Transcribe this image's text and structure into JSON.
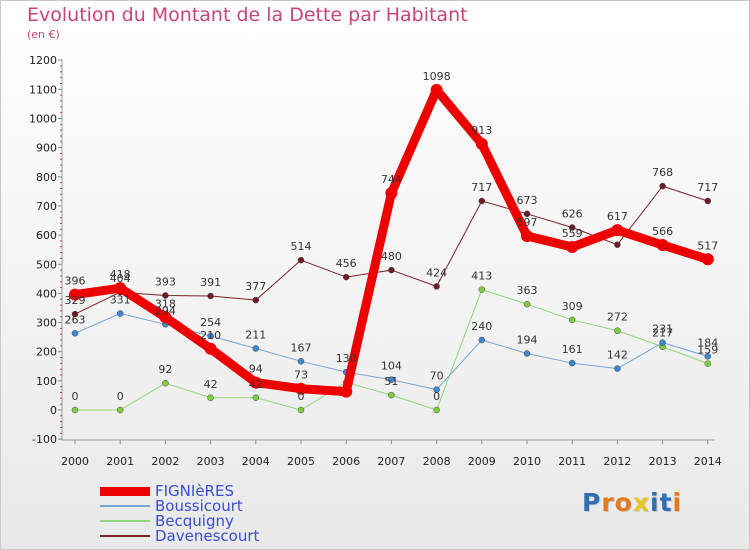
{
  "title": "Evolution du Montant de la Dette par Habitant",
  "unit": "(en €)",
  "logo": {
    "letters": [
      "P",
      "r",
      "o",
      "x",
      "i",
      "t",
      "i"
    ],
    "colors": [
      "#2e6fb6",
      "#e07a1b",
      "#e07a1b",
      "#e8c71a",
      "#2e6fb6",
      "#2e6fb6",
      "#e07a1b"
    ]
  },
  "chart_data": {
    "type": "line",
    "x": [
      "2000",
      "2001",
      "2002",
      "2003",
      "2004",
      "2005",
      "2006",
      "2007",
      "2008",
      "2009",
      "2010",
      "2011",
      "2012",
      "2013",
      "2014"
    ],
    "ylim": [
      -100,
      1200
    ],
    "yticks": [
      -100,
      0,
      100,
      200,
      300,
      400,
      500,
      600,
      700,
      800,
      900,
      1000,
      1100,
      1200
    ],
    "grid": false,
    "legend_position": "bottom-left",
    "series": [
      {
        "name": "Davenescourt",
        "color": "#7b1f2a",
        "marker": "#6e1c26",
        "width": 1,
        "values": [
          329,
          404,
          393,
          391,
          377,
          514,
          456,
          480,
          424,
          717,
          673,
          626,
          567,
          768,
          717
        ],
        "labels": [
          "329",
          "404",
          "393",
          "391",
          "377",
          "514",
          "456",
          "480",
          "424",
          "717",
          "673",
          "626",
          "",
          "768",
          "717"
        ]
      },
      {
        "name": "Becquigny",
        "color": "#92d67a",
        "marker": "#7bcf3c",
        "width": 1,
        "values": [
          0,
          0,
          92,
          42,
          42,
          0,
          95,
          51,
          0,
          413,
          363,
          309,
          272,
          217,
          159
        ],
        "labels": [
          "0",
          "0",
          "92",
          "42",
          "42",
          "0",
          "",
          "51",
          "0",
          "413",
          "363",
          "309",
          "272",
          "217",
          "159"
        ]
      },
      {
        "name": "Boussicourt",
        "color": "#78a5d2",
        "marker": "#3d87cf",
        "width": 1,
        "values": [
          263,
          331,
          294,
          254,
          211,
          167,
          130,
          104,
          70,
          240,
          194,
          161,
          142,
          231,
          184
        ],
        "labels": [
          "263",
          "331",
          "294",
          "254",
          "211",
          "167",
          "130",
          "104",
          "70",
          "240",
          "194",
          "161",
          "142",
          "231",
          "184"
        ]
      },
      {
        "name": "FIGNIèRES",
        "color": "#ee0000",
        "marker": "#ee0000",
        "width": 9,
        "values": [
          396,
          418,
          318,
          210,
          94,
          73,
          63,
          744,
          1098,
          913,
          597,
          559,
          617,
          566,
          517
        ],
        "labels": [
          "396",
          "418",
          "318",
          "210",
          "94",
          "73",
          "",
          "744",
          "1098",
          "913",
          "597",
          "559",
          "617",
          "566",
          "517"
        ]
      }
    ]
  }
}
